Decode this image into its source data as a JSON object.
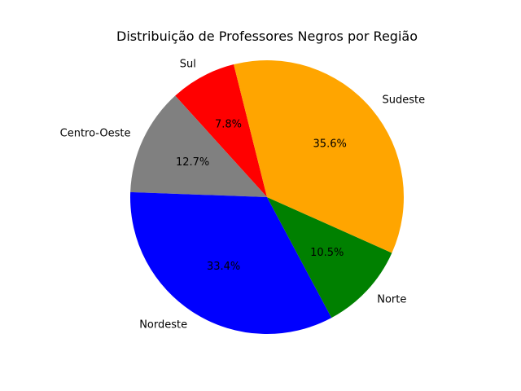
{
  "chart_data": {
    "type": "pie",
    "title": "Distribuição de Professores Negros por Região",
    "start_angle_deg": 104.1,
    "direction": "counterclockwise",
    "slices": [
      {
        "label": "Sul",
        "value": 7.8,
        "pct_label": "7.8%",
        "color": "#ff0000"
      },
      {
        "label": "Centro-Oeste",
        "value": 12.7,
        "pct_label": "12.7%",
        "color": "#808080"
      },
      {
        "label": "Nordeste",
        "value": 33.4,
        "pct_label": "33.4%",
        "color": "#0000ff"
      },
      {
        "label": "Norte",
        "value": 10.5,
        "pct_label": "10.5%",
        "color": "#008000"
      },
      {
        "label": "Sudeste",
        "value": 35.6,
        "pct_label": "35.6%",
        "color": "#ffa500"
      }
    ]
  }
}
